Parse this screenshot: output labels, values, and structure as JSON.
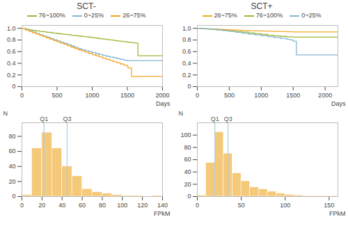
{
  "chart_data": [
    {
      "type": "step",
      "title": "SCT-",
      "xlabel": "Days",
      "xlim": [
        0,
        2000
      ],
      "xticks": [
        0,
        500,
        1000,
        1500,
        2000
      ],
      "ylim": [
        0,
        1.05
      ],
      "yticks": [
        0,
        0.2,
        0.4,
        0.6,
        0.8,
        {
          "value": 1.0,
          "label": "1.0"
        }
      ],
      "grid": false,
      "legend": "top",
      "series": [
        {
          "name": "76~100%",
          "color": "#9ab832",
          "x": [
            0,
            50,
            100,
            150,
            200,
            250,
            300,
            350,
            400,
            450,
            500,
            550,
            600,
            650,
            700,
            750,
            800,
            850,
            900,
            950,
            1000,
            1050,
            1100,
            1150,
            1200,
            1250,
            1300,
            1350,
            1400,
            1450,
            1500,
            1550,
            1600,
            1650,
            1700,
            2000
          ],
          "values": [
            1.0,
            0.985,
            0.975,
            0.965,
            0.955,
            0.948,
            0.94,
            0.933,
            0.925,
            0.918,
            0.91,
            0.903,
            0.896,
            0.89,
            0.882,
            0.875,
            0.868,
            0.861,
            0.854,
            0.847,
            0.84,
            0.832,
            0.823,
            0.815,
            0.807,
            0.8,
            0.792,
            0.784,
            0.777,
            0.77,
            0.762,
            0.755,
            0.748,
            0.53,
            0.53,
            0.53
          ]
        },
        {
          "name": "0~25%",
          "color": "#85b5d0",
          "x": [
            0,
            50,
            100,
            150,
            200,
            250,
            300,
            350,
            400,
            450,
            500,
            550,
            600,
            650,
            700,
            750,
            800,
            850,
            900,
            950,
            1000,
            1050,
            1100,
            1150,
            1200,
            1250,
            1300,
            1350,
            1400,
            1450,
            1500,
            1600,
            2000
          ],
          "values": [
            1.0,
            0.975,
            0.955,
            0.935,
            0.912,
            0.89,
            0.87,
            0.848,
            0.825,
            0.805,
            0.783,
            0.762,
            0.74,
            0.72,
            0.695,
            0.672,
            0.65,
            0.632,
            0.615,
            0.6,
            0.582,
            0.567,
            0.55,
            0.535,
            0.522,
            0.508,
            0.495,
            0.48,
            0.468,
            0.455,
            0.445,
            0.445,
            0.445
          ]
        },
        {
          "name": "26~75%",
          "color": "#f5a623",
          "x": [
            0,
            50,
            100,
            150,
            200,
            250,
            300,
            350,
            400,
            450,
            500,
            550,
            600,
            650,
            700,
            750,
            800,
            850,
            900,
            950,
            1000,
            1050,
            1100,
            1150,
            1200,
            1250,
            1300,
            1350,
            1400,
            1450,
            1500,
            1510,
            1560,
            2000
          ],
          "values": [
            1.0,
            0.97,
            0.948,
            0.925,
            0.902,
            0.88,
            0.858,
            0.835,
            0.812,
            0.79,
            0.768,
            0.745,
            0.723,
            0.7,
            0.677,
            0.655,
            0.632,
            0.61,
            0.59,
            0.57,
            0.548,
            0.528,
            0.508,
            0.488,
            0.468,
            0.448,
            0.428,
            0.408,
            0.388,
            0.368,
            0.345,
            0.32,
            0.175,
            0.175
          ]
        }
      ]
    },
    {
      "type": "step",
      "title": "SCT+",
      "xlabel": "Days",
      "xlim": [
        0,
        2200
      ],
      "xticks": [
        0,
        500,
        1000,
        1500,
        2000
      ],
      "ylim": [
        0,
        1.05
      ],
      "yticks": [
        0,
        0.2,
        0.4,
        0.6,
        0.8,
        {
          "value": 1.0,
          "label": "1.0"
        }
      ],
      "grid": false,
      "legend": "top",
      "series": [
        {
          "name": "26~75%",
          "color": "#f5a623",
          "x": [
            0,
            50,
            100,
            150,
            200,
            250,
            300,
            350,
            400,
            450,
            500,
            550,
            600,
            650,
            700,
            750,
            800,
            850,
            900,
            1000,
            1100,
            1200,
            1300,
            1400,
            1450,
            1500,
            2200
          ],
          "values": [
            1.0,
            0.998,
            0.995,
            0.992,
            0.99,
            0.988,
            0.985,
            0.982,
            0.98,
            0.978,
            0.975,
            0.972,
            0.97,
            0.968,
            0.966,
            0.963,
            0.96,
            0.958,
            0.956,
            0.953,
            0.95,
            0.947,
            0.945,
            0.942,
            0.94,
            0.938,
            0.938
          ]
        },
        {
          "name": "76~100%",
          "color": "#9ab832",
          "x": [
            0,
            50,
            100,
            150,
            200,
            250,
            300,
            350,
            400,
            450,
            500,
            600,
            700,
            800,
            900,
            1000,
            1100,
            1200,
            1300,
            1400,
            1500,
            2200
          ],
          "values": [
            1.0,
            0.996,
            0.991,
            0.987,
            0.983,
            0.979,
            0.975,
            0.97,
            0.965,
            0.96,
            0.955,
            0.945,
            0.935,
            0.92,
            0.908,
            0.895,
            0.882,
            0.87,
            0.862,
            0.855,
            0.848,
            0.848
          ]
        },
        {
          "name": "0~25%",
          "color": "#85b5d0",
          "x": [
            0,
            50,
            100,
            200,
            300,
            400,
            500,
            600,
            700,
            800,
            900,
            1000,
            1100,
            1200,
            1300,
            1400,
            1450,
            1500,
            1550,
            1600,
            2200
          ],
          "values": [
            1.0,
            0.997,
            0.993,
            0.985,
            0.975,
            0.962,
            0.948,
            0.932,
            0.915,
            0.9,
            0.887,
            0.873,
            0.858,
            0.843,
            0.828,
            0.813,
            0.8,
            0.78,
            0.545,
            0.545,
            0.545
          ]
        }
      ]
    },
    {
      "type": "histogram",
      "xlabel": "FPkM",
      "ylabel": "N",
      "color": "#f5c97a",
      "bins": [
        0,
        10,
        20,
        30,
        40,
        50,
        60,
        70,
        80,
        90,
        100,
        110,
        120,
        130,
        140
      ],
      "values": [
        2,
        64,
        85,
        64,
        40,
        27,
        10,
        6,
        4,
        2,
        1,
        1,
        0,
        1
      ],
      "xlim": [
        0,
        140
      ],
      "xticks": [
        0,
        20,
        40,
        60,
        80,
        100,
        120,
        140
      ],
      "ylim": [
        0,
        98
      ],
      "yticks": [
        0,
        20,
        40,
        60,
        80
      ],
      "grid": false,
      "annotations": [
        {
          "text": "Q1",
          "x": 22,
          "color": "#aacde0"
        },
        {
          "text": "Q3",
          "x": 45,
          "color": "#aacde0"
        }
      ]
    },
    {
      "type": "histogram",
      "xlabel": "FPkM",
      "ylabel": "N",
      "color": "#f5c97a",
      "bins": [
        0,
        10,
        20,
        30,
        40,
        50,
        60,
        70,
        80,
        90,
        100,
        110,
        120,
        130,
        140,
        150,
        160
      ],
      "values": [
        2,
        55,
        105,
        70,
        38,
        25,
        15,
        12,
        8,
        5,
        3,
        2,
        1,
        1,
        1,
        1
      ],
      "xlim": [
        0,
        160
      ],
      "xticks": [
        0,
        50,
        100,
        150
      ],
      "ylim": [
        0,
        120
      ],
      "yticks": [
        0,
        20,
        40,
        60,
        80,
        100
      ],
      "grid": false,
      "annotations": [
        {
          "text": "Q1",
          "x": 20,
          "color": "#aacde0"
        },
        {
          "text": "Q3",
          "x": 35,
          "color": "#aacde0"
        }
      ]
    }
  ]
}
